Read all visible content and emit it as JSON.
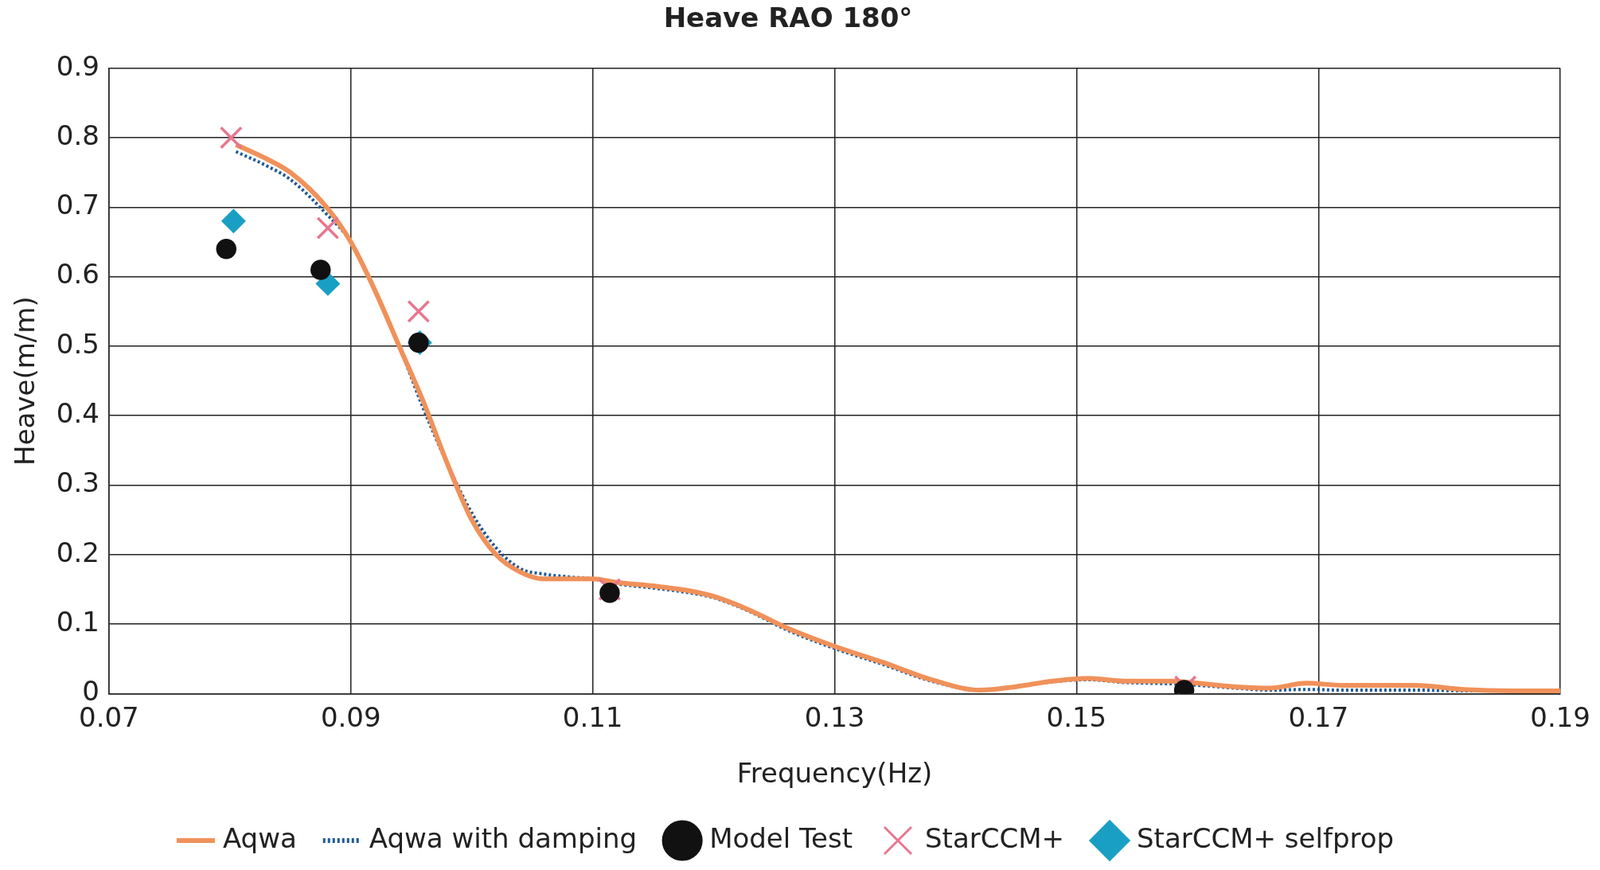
{
  "chart_data": {
    "type": "line",
    "title": "Heave RAO 180°",
    "x_label": "Frequency(Hz)",
    "y_label": "Heave(m/m)",
    "xlim": [
      0.07,
      0.19
    ],
    "xticks": [
      0.07,
      0.09,
      0.11,
      0.13,
      0.15,
      0.17,
      0.19
    ],
    "ylim": [
      0,
      0.9
    ],
    "yticks": [
      0,
      0.1,
      0.2,
      0.3,
      0.4,
      0.5,
      0.6,
      0.7,
      0.8,
      0.9
    ],
    "grid": true,
    "legend": "bottom",
    "series": [
      {
        "name": "Aqwa",
        "type": "line",
        "color": "#f0915a",
        "line_style": "solid",
        "marker": "none",
        "x": [
          0.0805,
          0.083,
          0.085,
          0.088,
          0.09,
          0.092,
          0.094,
          0.096,
          0.098,
          0.1,
          0.102,
          0.104,
          0.106,
          0.108,
          0.11,
          0.112,
          0.115,
          0.118,
          0.12,
          0.123,
          0.126,
          0.13,
          0.134,
          0.138,
          0.142,
          0.145,
          0.148,
          0.151,
          0.154,
          0.158,
          0.16,
          0.163,
          0.166,
          0.169,
          0.172,
          0.175,
          0.178,
          0.182,
          0.186,
          0.19,
          0.191
        ],
        "values": [
          0.79,
          0.77,
          0.75,
          0.7,
          0.65,
          0.58,
          0.5,
          0.42,
          0.33,
          0.25,
          0.2,
          0.175,
          0.165,
          0.165,
          0.165,
          0.16,
          0.155,
          0.148,
          0.14,
          0.12,
          0.095,
          0.068,
          0.045,
          0.02,
          0.005,
          0.01,
          0.018,
          0.022,
          0.018,
          0.018,
          0.015,
          0.01,
          0.008,
          0.015,
          0.012,
          0.012,
          0.012,
          0.006,
          0.004,
          0.004,
          0.005
        ]
      },
      {
        "name": "Aqwa with damping",
        "type": "line",
        "color": "#1f5a96",
        "line_style": "dotted",
        "marker": "none",
        "x": [
          0.0805,
          0.083,
          0.085,
          0.088,
          0.09,
          0.092,
          0.094,
          0.096,
          0.098,
          0.1,
          0.102,
          0.104,
          0.106,
          0.108,
          0.11,
          0.112,
          0.115,
          0.118,
          0.12,
          0.123,
          0.126,
          0.13,
          0.134,
          0.138,
          0.142,
          0.145,
          0.148,
          0.151,
          0.154,
          0.158,
          0.16,
          0.163,
          0.166,
          0.169,
          0.172,
          0.175,
          0.178,
          0.182,
          0.186,
          0.19,
          0.191
        ],
        "values": [
          0.78,
          0.76,
          0.74,
          0.69,
          0.65,
          0.58,
          0.5,
          0.41,
          0.33,
          0.26,
          0.21,
          0.18,
          0.172,
          0.168,
          0.165,
          0.158,
          0.152,
          0.145,
          0.138,
          0.118,
          0.092,
          0.065,
          0.042,
          0.018,
          0.005,
          0.01,
          0.017,
          0.02,
          0.016,
          0.014,
          0.012,
          0.008,
          0.005,
          0.006,
          0.005,
          0.005,
          0.005,
          0.004,
          0.004,
          0.004,
          0.005
        ]
      },
      {
        "name": "Model Test",
        "type": "scatter",
        "color": "#111111",
        "marker": "circle",
        "x": [
          0.0797,
          0.0875,
          0.0956,
          0.1114,
          0.1589
        ],
        "values": [
          0.64,
          0.61,
          0.505,
          0.145,
          0.005
        ]
      },
      {
        "name": "StarCCM+",
        "type": "scatter",
        "color": "#e8768e",
        "marker": "x",
        "x": [
          0.0801,
          0.0881,
          0.0956,
          0.1114,
          0.159
        ],
        "values": [
          0.8,
          0.67,
          0.55,
          0.15,
          0.01
        ]
      },
      {
        "name": "StarCCM+ selfprop",
        "type": "scatter",
        "color": "#1a9fc4",
        "marker": "diamond",
        "x": [
          0.0803,
          0.0881,
          0.0957
        ],
        "values": [
          0.68,
          0.59,
          0.505
        ]
      }
    ]
  }
}
